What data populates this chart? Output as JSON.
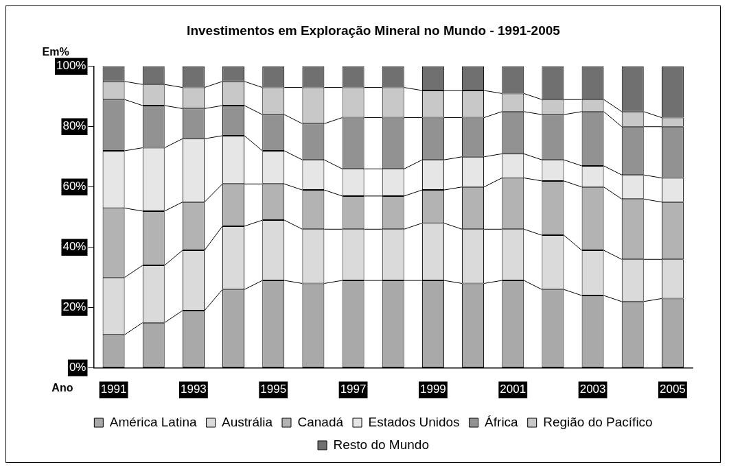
{
  "chart_data": {
    "type": "bar",
    "title": "Investimentos em Exploração Mineral no Mundo - 1991-2005",
    "ylabel": "Em%",
    "xlabel": "Ano",
    "stacked": true,
    "categories": [
      "1991",
      null,
      "1993",
      null,
      "1995",
      null,
      "1997",
      null,
      "1999",
      null,
      "2001",
      null,
      "2003",
      null,
      "2005"
    ],
    "series": [
      {
        "name": "América Latina",
        "color": "#a9a9a9",
        "values": [
          11,
          15,
          19,
          26,
          29,
          28,
          29,
          29,
          29,
          28,
          29,
          26,
          24,
          22,
          23
        ]
      },
      {
        "name": "Austrália",
        "color": "#dadada",
        "values": [
          19,
          19,
          20,
          21,
          20,
          18,
          17,
          17,
          19,
          18,
          17,
          18,
          15,
          14,
          13
        ]
      },
      {
        "name": "Canadá",
        "color": "#b3b3b3",
        "values": [
          23,
          18,
          16,
          14,
          12,
          13,
          11,
          11,
          11,
          14,
          17,
          18,
          21,
          20,
          19
        ]
      },
      {
        "name": "Estados Unidos",
        "color": "#e6e6e6",
        "values": [
          19,
          21,
          21,
          16,
          11,
          10,
          9,
          9,
          10,
          10,
          8,
          7,
          7,
          8,
          8
        ]
      },
      {
        "name": "África",
        "color": "#929292",
        "values": [
          17,
          14,
          10,
          10,
          12,
          12,
          17,
          17,
          14,
          13,
          14,
          15,
          18,
          16,
          17
        ]
      },
      {
        "name": "Região do Pacífico",
        "color": "#c8c8c8",
        "values": [
          6,
          7,
          7,
          8,
          9,
          12,
          10,
          10,
          9,
          9,
          6,
          5,
          4,
          5,
          3
        ]
      },
      {
        "name": "Resto do Mundo",
        "color": "#707070",
        "values": [
          5,
          6,
          7,
          5,
          7,
          7,
          7,
          7,
          8,
          8,
          9,
          11,
          11,
          15,
          17
        ]
      }
    ],
    "ylim": [
      0,
      100
    ],
    "yticks": [
      {
        "value": 0,
        "label": "0%"
      },
      {
        "value": 20,
        "label": "20%"
      },
      {
        "value": 40,
        "label": "40%"
      },
      {
        "value": 60,
        "label": "60%"
      },
      {
        "value": 80,
        "label": "80%"
      },
      {
        "value": 100,
        "label": "100%"
      }
    ],
    "grid": false,
    "legend": "bottom"
  }
}
